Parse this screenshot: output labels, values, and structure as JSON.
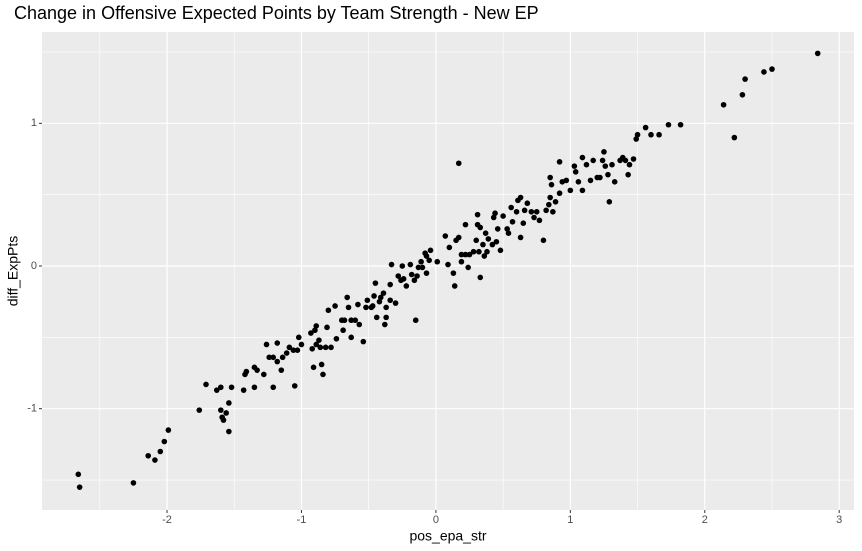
{
  "chart_data": {
    "type": "scatter",
    "title": "Change in Offensive Expected Points by Team Strength - New EP",
    "x_label": "pos_epa_str",
    "y_label": "diff_ExpPts",
    "xlim": [
      -2.93,
      3.11
    ],
    "ylim": [
      -1.71,
      1.64
    ],
    "xticks": [
      -2,
      -1,
      0,
      1,
      2,
      3
    ],
    "yticks": [
      -1,
      0,
      1
    ],
    "grid": true,
    "color": "#000000",
    "x": [
      -2.66,
      -2.65,
      -2.25,
      -2.14,
      -2.09,
      -2.05,
      -2.02,
      -1.99,
      -1.76,
      -1.71,
      -1.63,
      -1.6,
      -1.6,
      -1.59,
      -1.58,
      -1.56,
      -1.54,
      -1.54,
      -1.52,
      -1.43,
      -1.42,
      -1.41,
      -1.35,
      -1.35,
      -1.33,
      -1.28,
      -1.26,
      -1.24,
      -1.21,
      -1.21,
      -1.18,
      -1.18,
      -1.15,
      -1.14,
      -1.11,
      -1.09,
      -1.06,
      -1.05,
      -1.03,
      -1.02,
      -1.0,
      -0.93,
      -0.92,
      -0.91,
      -0.9,
      -0.89,
      -0.89,
      -0.87,
      -0.86,
      -0.85,
      -0.84,
      -0.82,
      -0.81,
      -0.8,
      -0.78,
      -0.75,
      -0.74,
      -0.7,
      -0.69,
      -0.68,
      -0.66,
      -0.65,
      -0.63,
      -0.63,
      -0.6,
      -0.58,
      -0.57,
      -0.54,
      -0.52,
      -0.51,
      -0.48,
      -0.47,
      -0.46,
      -0.45,
      -0.44,
      -0.42,
      -0.41,
      -0.39,
      -0.38,
      -0.37,
      -0.37,
      -0.34,
      -0.34,
      -0.33,
      -0.3,
      -0.28,
      -0.26,
      -0.25,
      -0.24,
      -0.22,
      -0.19,
      -0.18,
      -0.16,
      -0.15,
      -0.14,
      -0.13,
      -0.11,
      -0.1,
      -0.08,
      -0.07,
      -0.07,
      -0.05,
      -0.04,
      0.01,
      0.07,
      0.09,
      0.1,
      0.13,
      0.14,
      0.15,
      0.17,
      0.17,
      0.19,
      0.19,
      0.22,
      0.22,
      0.24,
      0.25,
      0.28,
      0.3,
      0.31,
      0.31,
      0.32,
      0.33,
      0.33,
      0.35,
      0.36,
      0.37,
      0.38,
      0.39,
      0.42,
      0.43,
      0.44,
      0.45,
      0.46,
      0.48,
      0.5,
      0.53,
      0.54,
      0.56,
      0.57,
      0.6,
      0.61,
      0.63,
      0.63,
      0.65,
      0.66,
      0.68,
      0.71,
      0.73,
      0.75,
      0.77,
      0.8,
      0.82,
      0.84,
      0.85,
      0.85,
      0.86,
      0.87,
      0.89,
      0.92,
      0.92,
      0.94,
      0.97,
      1.0,
      1.03,
      1.04,
      1.06,
      1.09,
      1.09,
      1.12,
      1.15,
      1.17,
      1.2,
      1.22,
      1.24,
      1.25,
      1.26,
      1.28,
      1.29,
      1.31,
      1.33,
      1.37,
      1.39,
      1.41,
      1.43,
      1.44,
      1.47,
      1.49,
      1.5,
      1.56,
      1.6,
      1.66,
      1.73,
      1.82,
      2.14,
      2.22,
      2.28,
      2.3,
      2.44,
      2.5,
      2.84
    ],
    "y": [
      -1.46,
      -1.55,
      -1.52,
      -1.33,
      -1.36,
      -1.3,
      -1.23,
      -1.15,
      -1.01,
      -0.83,
      -0.87,
      -0.85,
      -1.01,
      -1.06,
      -1.08,
      -1.03,
      -0.96,
      -1.16,
      -0.85,
      -0.87,
      -0.76,
      -0.74,
      -0.71,
      -0.85,
      -0.73,
      -0.76,
      -0.55,
      -0.64,
      -0.64,
      -0.85,
      -0.54,
      -0.67,
      -0.73,
      -0.64,
      -0.61,
      -0.57,
      -0.59,
      -0.84,
      -0.59,
      -0.5,
      -0.55,
      -0.47,
      -0.58,
      -0.71,
      -0.45,
      -0.55,
      -0.42,
      -0.52,
      -0.57,
      -0.69,
      -0.76,
      -0.57,
      -0.43,
      -0.31,
      -0.57,
      -0.28,
      -0.51,
      -0.38,
      -0.45,
      -0.38,
      -0.22,
      -0.29,
      -0.38,
      -0.5,
      -0.38,
      -0.27,
      -0.41,
      -0.53,
      -0.29,
      -0.24,
      -0.29,
      -0.28,
      -0.21,
      -0.12,
      -0.36,
      -0.25,
      -0.22,
      -0.19,
      -0.41,
      -0.36,
      -0.29,
      -0.13,
      -0.24,
      0.01,
      -0.26,
      -0.07,
      -0.1,
      0.0,
      -0.09,
      -0.14,
      0.01,
      -0.06,
      -0.1,
      -0.38,
      -0.07,
      -0.01,
      0.03,
      -0.01,
      0.09,
      -0.05,
      0.07,
      0.04,
      0.11,
      0.03,
      0.21,
      0.01,
      0.13,
      -0.05,
      -0.14,
      0.18,
      0.72,
      0.2,
      0.03,
      0.08,
      0.08,
      0.29,
      -0.01,
      0.08,
      0.1,
      0.18,
      0.36,
      0.29,
      0.1,
      -0.08,
      0.27,
      0.15,
      0.07,
      0.23,
      0.1,
      0.19,
      0.15,
      0.34,
      0.37,
      0.17,
      0.26,
      0.11,
      0.35,
      0.26,
      0.23,
      0.41,
      0.31,
      0.38,
      0.46,
      0.2,
      0.48,
      0.3,
      0.39,
      0.44,
      0.38,
      0.34,
      0.38,
      0.32,
      0.18,
      0.39,
      0.43,
      0.48,
      0.62,
      0.57,
      0.38,
      0.45,
      0.51,
      0.73,
      0.59,
      0.6,
      0.53,
      0.7,
      0.66,
      0.59,
      0.76,
      0.53,
      0.71,
      0.6,
      0.74,
      0.62,
      0.62,
      0.74,
      0.8,
      0.7,
      0.64,
      0.45,
      0.71,
      0.59,
      0.74,
      0.76,
      0.74,
      0.64,
      0.71,
      0.75,
      0.89,
      0.92,
      0.97,
      0.92,
      0.92,
      0.99,
      0.99,
      1.13,
      0.9,
      1.2,
      1.31,
      1.36,
      1.38,
      1.49
    ]
  }
}
